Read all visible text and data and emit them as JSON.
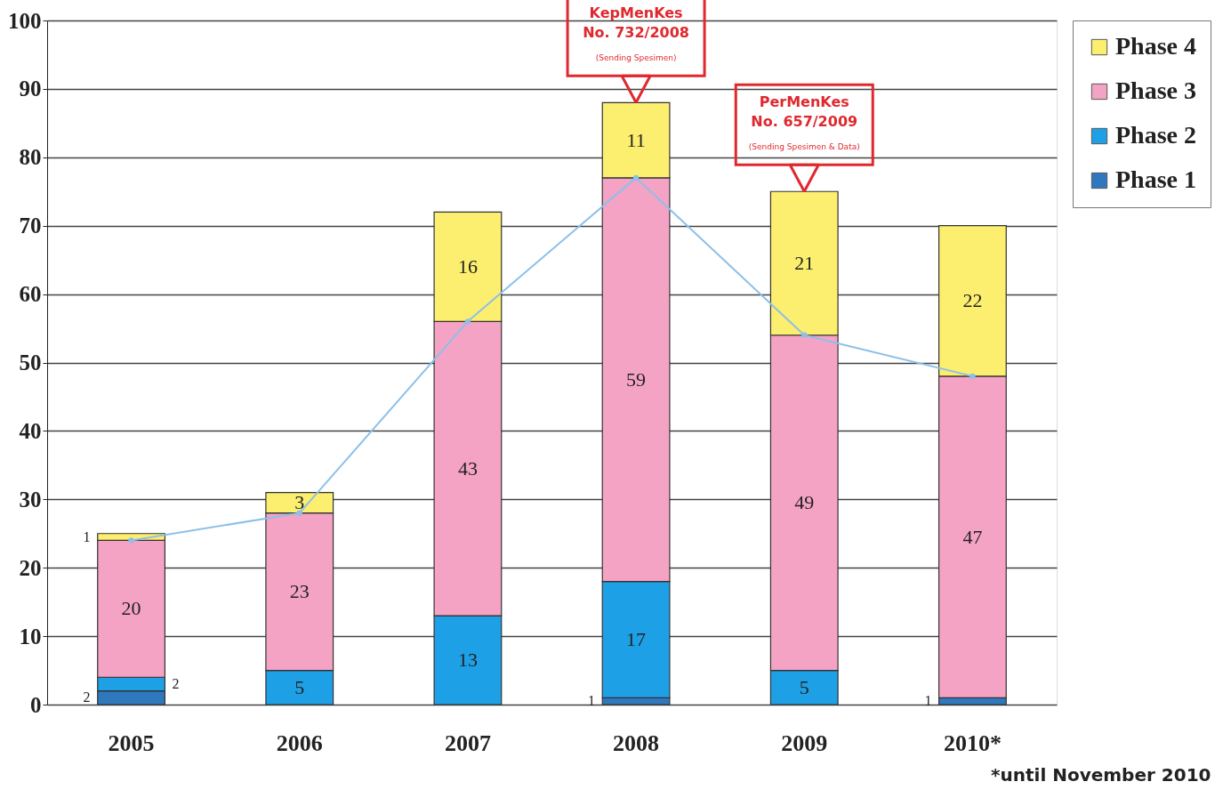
{
  "chart_data": {
    "type": "bar",
    "stacked": true,
    "categories": [
      "2005",
      "2006",
      "2007",
      "2008",
      "2009",
      "2010*"
    ],
    "series": [
      {
        "name": "Phase 1",
        "color": "#2f78bd",
        "values": [
          2,
          null,
          null,
          1,
          null,
          1
        ],
        "value_labels": [
          "2",
          null,
          null,
          "1",
          null,
          "1"
        ]
      },
      {
        "name": "Phase 2",
        "color": "#1ea0e6",
        "values": [
          2,
          5,
          13,
          17,
          5,
          null
        ],
        "value_labels": [
          "2",
          "5",
          "13",
          "17",
          "5",
          null
        ]
      },
      {
        "name": "Phase 3",
        "color": "#f4a3c4",
        "values": [
          20,
          23,
          43,
          59,
          49,
          47
        ],
        "value_labels": [
          "20",
          "23",
          "43",
          "59",
          "49",
          "47"
        ]
      },
      {
        "name": "Phase 4",
        "color": "#fcee6e",
        "values": [
          1,
          3,
          16,
          11,
          21,
          22
        ],
        "value_labels": [
          "1",
          "3",
          "16",
          "11",
          "21",
          "22"
        ]
      },
      {
        "type": "line",
        "color": "#8cc0ea",
        "marker": "circle",
        "values": [
          24,
          28,
          56,
          77,
          54,
          48
        ]
      }
    ],
    "ylim": [
      0,
      100
    ],
    "yticks": [
      0,
      10,
      20,
      30,
      40,
      50,
      60,
      70,
      80,
      90,
      100
    ],
    "grid": "y",
    "legend": "right",
    "annotations": [
      {
        "text": "KepMenKes\nNo. 732/2008\n(Sending Spesimen)",
        "x": "2008",
        "y": 88
      },
      {
        "text": "PerMenKes\nNo. 657/2009\n(Sending Spesimen & Data)",
        "x": "2009",
        "y": 75
      },
      "*until November 2010"
    ]
  }
}
